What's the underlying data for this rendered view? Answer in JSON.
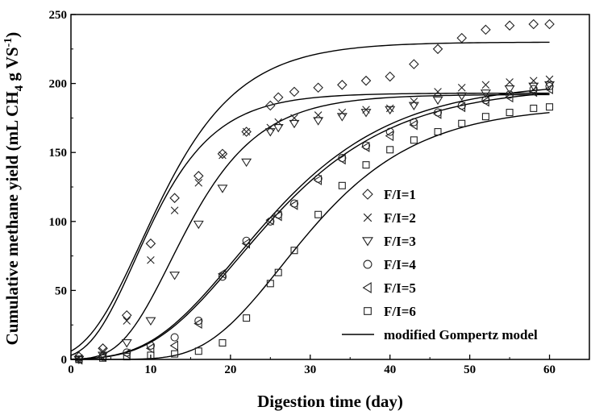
{
  "chart_data": {
    "type": "scatter",
    "xlabel": "Digestion time (day)",
    "ylabel": "Cumulative methane  yield (mL CH4 g VS-1)",
    "ylabel_parts": {
      "main": "Cumulative methane  yield (mL CH",
      "sub": "4",
      "mid": " g VS",
      "sup": "-1",
      "end": ")"
    },
    "xlim": [
      0,
      65
    ],
    "ylim": [
      0,
      250
    ],
    "x_ticks": [
      0,
      10,
      20,
      30,
      40,
      50,
      60
    ],
    "y_ticks": [
      0,
      50,
      100,
      150,
      200,
      250
    ],
    "x_tick_labels": [
      "0",
      "10",
      "20",
      "30",
      "40",
      "50",
      "60"
    ],
    "y_tick_labels": [
      "0",
      "50",
      "100",
      "150",
      "200",
      "250"
    ],
    "legend_position": "right",
    "grid": false,
    "series": [
      {
        "name": "F/I=1",
        "marker": "diamond",
        "x": [
          1,
          4,
          7,
          10,
          13,
          16,
          19,
          22,
          25,
          26,
          28,
          31,
          34,
          37,
          40,
          43,
          46,
          49,
          52,
          55,
          58,
          60
        ],
        "y": [
          2,
          8,
          32,
          84,
          117,
          133,
          149,
          165,
          184,
          190,
          194,
          197,
          199,
          202,
          205,
          214,
          225,
          233,
          239,
          242,
          243,
          243
        ]
      },
      {
        "name": "F/I=2",
        "marker": "cross",
        "x": [
          1,
          4,
          7,
          10,
          13,
          16,
          19,
          22,
          25,
          26,
          28,
          31,
          34,
          37,
          40,
          43,
          46,
          49,
          52,
          55,
          58,
          60
        ],
        "y": [
          1,
          6,
          28,
          72,
          108,
          128,
          148,
          165,
          168,
          172,
          175,
          177,
          179,
          181,
          182,
          187,
          194,
          197,
          199,
          201,
          202,
          203
        ]
      },
      {
        "name": "F/I=3",
        "marker": "triangle-down",
        "x": [
          1,
          4,
          7,
          10,
          13,
          16,
          19,
          22,
          25,
          26,
          28,
          31,
          34,
          37,
          40,
          43,
          46,
          49,
          52,
          55,
          58,
          60
        ],
        "y": [
          0,
          3,
          12,
          28,
          61,
          98,
          124,
          143,
          165,
          168,
          171,
          173,
          176,
          179,
          181,
          184,
          188,
          191,
          193,
          196,
          198,
          199
        ]
      },
      {
        "name": "F/I=4",
        "marker": "circle",
        "x": [
          1,
          4,
          7,
          10,
          13,
          16,
          19,
          22,
          25,
          26,
          28,
          31,
          34,
          37,
          40,
          43,
          46,
          49,
          52,
          55,
          58,
          60
        ],
        "y": [
          0,
          2,
          5,
          10,
          16,
          28,
          60,
          86,
          100,
          105,
          113,
          131,
          146,
          155,
          165,
          172,
          179,
          184,
          188,
          192,
          196,
          198
        ]
      },
      {
        "name": "F/I=5",
        "marker": "triangle-left",
        "x": [
          1,
          4,
          7,
          10,
          13,
          16,
          19,
          22,
          25,
          26,
          28,
          31,
          34,
          37,
          40,
          43,
          46,
          49,
          52,
          55,
          58,
          60
        ],
        "y": [
          0,
          2,
          4,
          8,
          10,
          26,
          62,
          84,
          101,
          104,
          112,
          130,
          145,
          154,
          162,
          170,
          178,
          183,
          187,
          190,
          194,
          196
        ]
      },
      {
        "name": "F/I=6",
        "marker": "square",
        "x": [
          1,
          4,
          7,
          10,
          13,
          16,
          19,
          22,
          25,
          26,
          28,
          31,
          34,
          37,
          40,
          43,
          46,
          49,
          52,
          55,
          58,
          60
        ],
        "y": [
          0,
          1,
          2,
          3,
          4,
          6,
          12,
          30,
          55,
          63,
          79,
          105,
          126,
          141,
          152,
          159,
          165,
          171,
          176,
          179,
          182,
          183
        ]
      }
    ],
    "model": {
      "name": "modified Gompertz model",
      "curves": [
        {
          "P": 230,
          "Rm": 12.5,
          "lambda": 2.0
        },
        {
          "P": 193,
          "Rm": 12.8,
          "lambda": 2.4
        },
        {
          "P": 192,
          "Rm": 11.5,
          "lambda": 6.3
        },
        {
          "P": 201,
          "Rm": 6.9,
          "lambda": 10.0
        },
        {
          "P": 198,
          "Rm": 6.8,
          "lambda": 10.2
        },
        {
          "P": 184,
          "Rm": 7.2,
          "lambda": 17.0
        }
      ]
    }
  }
}
